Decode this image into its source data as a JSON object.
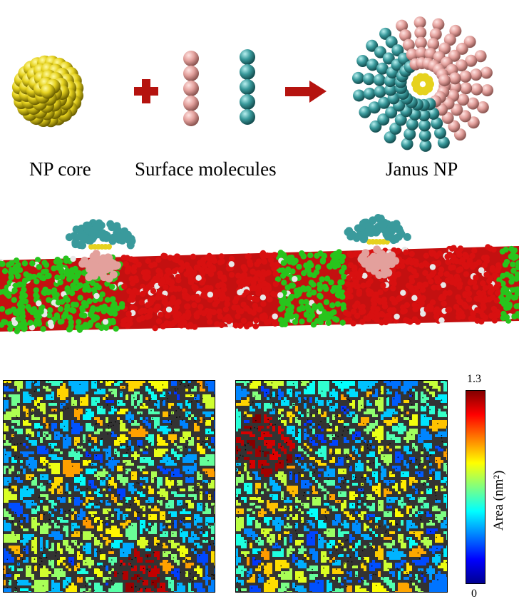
{
  "top_row": {
    "np_core_caption": "NP core",
    "surface_caption": "Surface molecules",
    "janus_caption": "Janus NP"
  },
  "colors": {
    "core_gold": "#e6d21e",
    "pink_bead": "#e3a09c",
    "teal_bead": "#3a9a9c",
    "arrow_red": "#b5130f",
    "lipid_red": "#d81010",
    "lipid_green": "#28c41c",
    "lipid_white": "#e8e8e8"
  },
  "colorbar": {
    "max_label": "1.3",
    "min_label": "0",
    "axis_label": "Area (nm²)",
    "range": [
      0,
      1.3
    ],
    "colormap": "jet"
  },
  "panels": {
    "left_hotspot": "bottom-center",
    "right_hotspot": "upper-left"
  }
}
